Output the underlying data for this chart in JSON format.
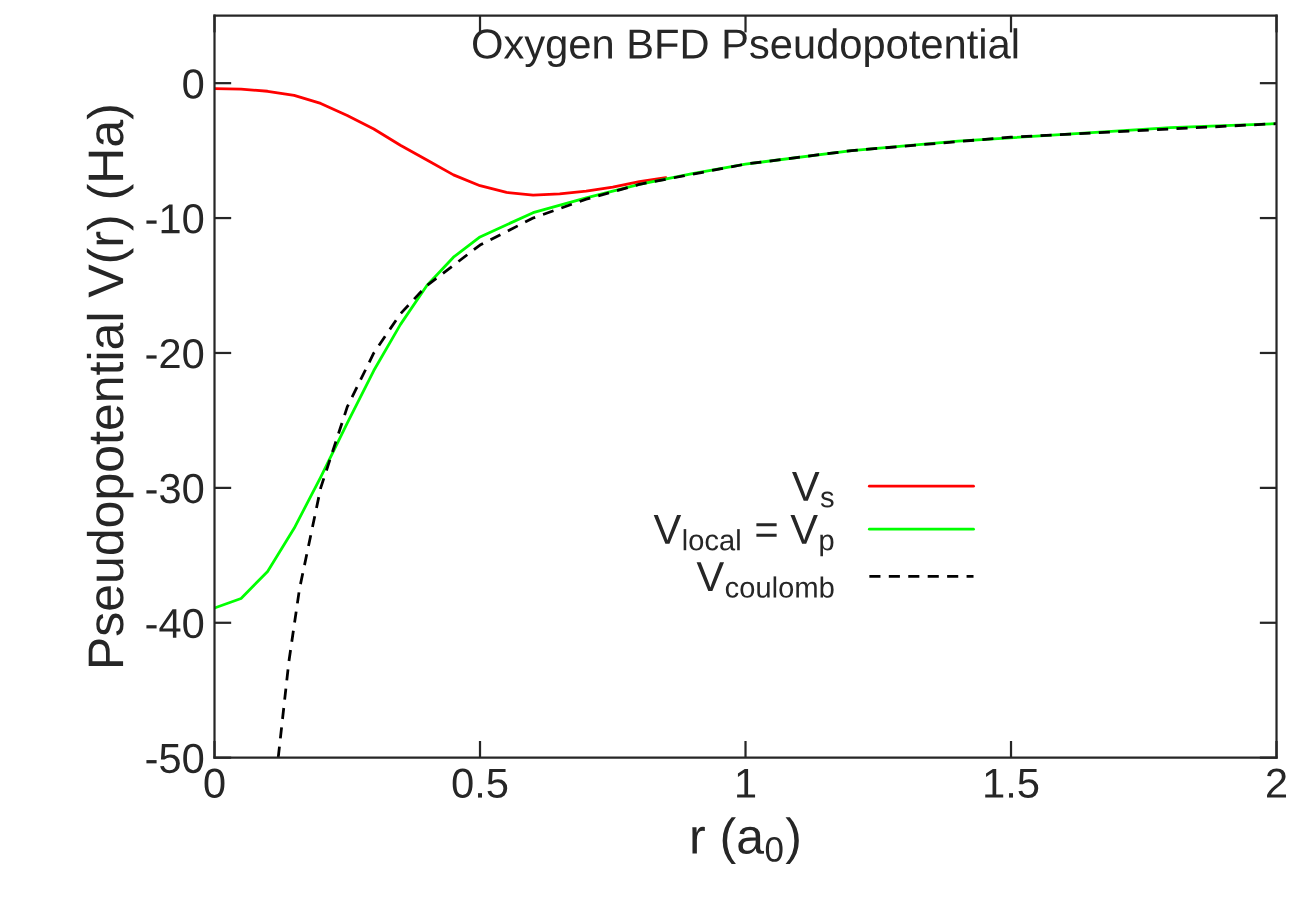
{
  "chart_data": {
    "type": "line",
    "title": "Oxygen BFD Pseudopotential",
    "xlabel": "r (a$_{0}$)",
    "ylabel": "Pseudopotential V(r) (Ha)",
    "xlim": [
      0,
      2
    ],
    "ylim": [
      -50,
      5
    ],
    "xticks": [
      0,
      0.5,
      1,
      1.5,
      2
    ],
    "yticks": [
      -50,
      -40,
      -30,
      -20,
      -10,
      0
    ],
    "grid": false,
    "legend": "right",
    "marker": "none",
    "series": [
      {
        "name": "V$_{s}$",
        "color": "#ff0000",
        "line_style": "solid",
        "x": [
          0,
          0.05,
          0.1,
          0.15,
          0.2,
          0.25,
          0.3,
          0.35,
          0.4,
          0.45,
          0.5,
          0.55,
          0.6,
          0.65,
          0.7,
          0.75,
          0.8,
          0.85
        ],
        "values": [
          -0.4,
          -0.45,
          -0.6,
          -0.9,
          -1.5,
          -2.4,
          -3.4,
          -4.6,
          -5.7,
          -6.8,
          -7.6,
          -8.1,
          -8.3,
          -8.2,
          -8.0,
          -7.7,
          -7.3,
          -7.0
        ]
      },
      {
        "name": "V$_{local}$ = V$_{p}$",
        "color": "#00ff00",
        "line_style": "solid",
        "x": [
          0,
          0.05,
          0.1,
          0.15,
          0.2,
          0.25,
          0.3,
          0.35,
          0.4,
          0.45,
          0.5,
          0.6,
          0.7,
          0.8,
          0.9,
          1.0,
          1.2,
          1.4,
          1.6,
          1.8,
          2.0
        ],
        "values": [
          -38.9,
          -38.2,
          -36.2,
          -33,
          -29.2,
          -25.2,
          -21.3,
          -17.9,
          -15.0,
          -12.9,
          -11.4,
          -9.6,
          -8.5,
          -7.5,
          -6.7,
          -6.0,
          -5.0,
          -4.3,
          -3.8,
          -3.3,
          -3.0
        ]
      },
      {
        "name": "V$_{coulomb}$",
        "color": "#000000",
        "line_style": "dashed",
        "x": [
          0.12,
          0.14,
          0.16,
          0.2,
          0.25,
          0.3,
          0.35,
          0.4,
          0.5,
          0.6,
          0.7,
          0.8,
          1.0,
          1.2,
          1.5,
          2.0
        ],
        "values": [
          -50,
          -42.9,
          -37.5,
          -30,
          -24,
          -20,
          -17.1,
          -15,
          -12,
          -10,
          -8.6,
          -7.5,
          -6,
          -5,
          -4,
          -3
        ]
      }
    ]
  }
}
